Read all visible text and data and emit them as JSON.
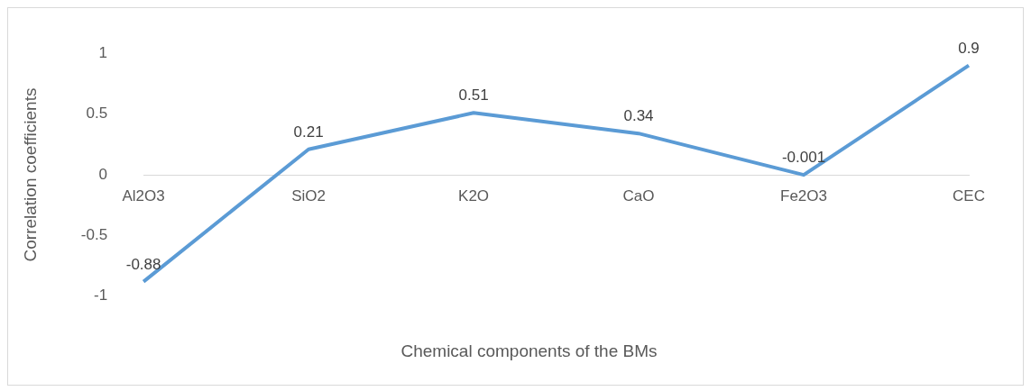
{
  "chart_data": {
    "type": "line",
    "xlabel": "Chemical components of the BMs",
    "ylabel": "Correlation coefficients",
    "categories": [
      "Al2O3",
      "SiO2",
      "K2O",
      "CaO",
      "Fe2O3",
      "CEC"
    ],
    "series": [
      {
        "color": "#5b9bd5",
        "values": [
          -0.88,
          0.21,
          0.51,
          0.34,
          -0.001,
          0.9
        ]
      }
    ],
    "ylim": [
      -1,
      1
    ],
    "yticks": [
      -1,
      -0.5,
      0,
      0.5,
      1
    ],
    "grid": false,
    "legend": false,
    "data_labels": true
  }
}
